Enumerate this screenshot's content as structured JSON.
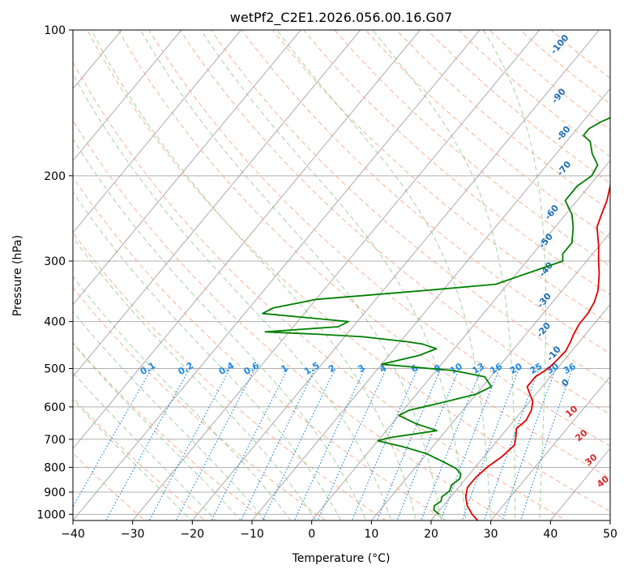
{
  "chart_data": {
    "type": "line",
    "title": "wetPf2_C2E1.2026.056.00.16.G07",
    "xlabel": "Temperature (°C)",
    "ylabel": "Pressure (hPa)",
    "xlim": [
      -40,
      50
    ],
    "ylim": [
      1030,
      100
    ],
    "y_scale": "log",
    "grid": true,
    "x_ticks": [
      -40,
      -30,
      -20,
      -10,
      0,
      10,
      20,
      30,
      40,
      50
    ],
    "y_ticks": [
      100,
      200,
      300,
      400,
      500,
      600,
      700,
      800,
      900,
      1000
    ],
    "colors": {
      "temperature": "#e00000",
      "dewpoint": "#008000",
      "isotherm": "#909090",
      "dry_adiabat": "#f4a582",
      "moist_adiabat": "#7fbf7b",
      "mixing_ratio": "#1e88e5",
      "label_moist": "#1f6fb4",
      "label_dry": "#d62728"
    },
    "series": [
      {
        "points": [
          [
            27.8,
            1030
          ],
          [
            26,
            1000
          ],
          [
            24,
            960
          ],
          [
            22.5,
            920
          ],
          [
            21.5,
            880
          ],
          [
            21.5,
            840
          ],
          [
            22,
            800
          ],
          [
            23,
            760
          ],
          [
            23.5,
            720
          ],
          [
            22.5,
            690
          ],
          [
            21.5,
            665
          ],
          [
            22,
            640
          ],
          [
            21.5,
            610
          ],
          [
            20.5,
            585
          ],
          [
            19,
            565
          ],
          [
            17.5,
            545
          ],
          [
            17.5,
            520
          ],
          [
            18.5,
            500
          ],
          [
            18.8,
            480
          ],
          [
            19,
            460
          ],
          [
            18.5,
            440
          ],
          [
            18,
            425
          ],
          [
            17.5,
            405
          ],
          [
            17.5,
            385
          ],
          [
            17,
            365
          ],
          [
            16,
            345
          ],
          [
            14,
            320
          ],
          [
            12,
            300
          ],
          [
            10,
            280
          ],
          [
            7,
            255
          ],
          [
            6,
            240
          ],
          [
            5,
            225
          ],
          [
            3,
            205
          ],
          [
            2,
            190
          ],
          [
            1,
            170
          ],
          [
            0.5,
            150
          ],
          [
            0.5,
            135
          ],
          [
            1,
            120
          ],
          [
            1,
            110
          ],
          [
            1.3,
            100
          ]
        ]
      },
      {
        "points": [
          [
            20.5,
            1000
          ],
          [
            19,
            980
          ],
          [
            18.5,
            960
          ],
          [
            19,
            940
          ],
          [
            18.5,
            920
          ],
          [
            19,
            895
          ],
          [
            18.5,
            870
          ],
          [
            19,
            845
          ],
          [
            18.5,
            825
          ],
          [
            17,
            805
          ],
          [
            14,
            780
          ],
          [
            10,
            750
          ],
          [
            5,
            725
          ],
          [
            0,
            705
          ],
          [
            1.5,
            695
          ],
          [
            8.5,
            672
          ],
          [
            4,
            650
          ],
          [
            0,
            625
          ],
          [
            1,
            610
          ],
          [
            5,
            590
          ],
          [
            10,
            565
          ],
          [
            11.5,
            545
          ],
          [
            9,
            520
          ],
          [
            3,
            505
          ],
          [
            -10,
            490
          ],
          [
            -5,
            470
          ],
          [
            -3,
            455
          ],
          [
            -6,
            445
          ],
          [
            -9,
            440
          ],
          [
            -17,
            430
          ],
          [
            -24.5,
            425
          ],
          [
            -34,
            420
          ],
          [
            -22.5,
            410
          ],
          [
            -21.5,
            400
          ],
          [
            -37,
            385
          ],
          [
            -36,
            375
          ],
          [
            -30,
            360
          ],
          [
            -13,
            345
          ],
          [
            -2,
            335
          ],
          [
            6,
            300
          ],
          [
            5,
            290
          ],
          [
            5,
            275
          ],
          [
            3,
            255
          ],
          [
            1,
            240
          ],
          [
            -2,
            225
          ],
          [
            -2,
            210
          ],
          [
            -1,
            200
          ],
          [
            -1.5,
            190
          ],
          [
            -4,
            180
          ],
          [
            -6,
            170
          ],
          [
            -8,
            165
          ],
          [
            -8,
            160
          ],
          [
            -7,
            155
          ],
          [
            -2,
            140
          ],
          [
            -1,
            125
          ],
          [
            0,
            112
          ],
          [
            1,
            105
          ],
          [
            1.5,
            100
          ]
        ]
      }
    ],
    "mixing_ratio_labels": [
      "0.1",
      "0.2",
      "0.4",
      "0.6",
      "1",
      "1.5",
      "2",
      "3",
      "4",
      "6",
      "8",
      "10",
      "13",
      "16",
      "20",
      "25",
      "30",
      "36"
    ],
    "moist_adiabat_labels": [
      "-100",
      "-90",
      "-80",
      "-70",
      "-60",
      "-50",
      "-40",
      "-30",
      "-20",
      "-10",
      "0"
    ],
    "dry_adiabat_labels": [
      "10",
      "20",
      "30",
      "40"
    ]
  }
}
